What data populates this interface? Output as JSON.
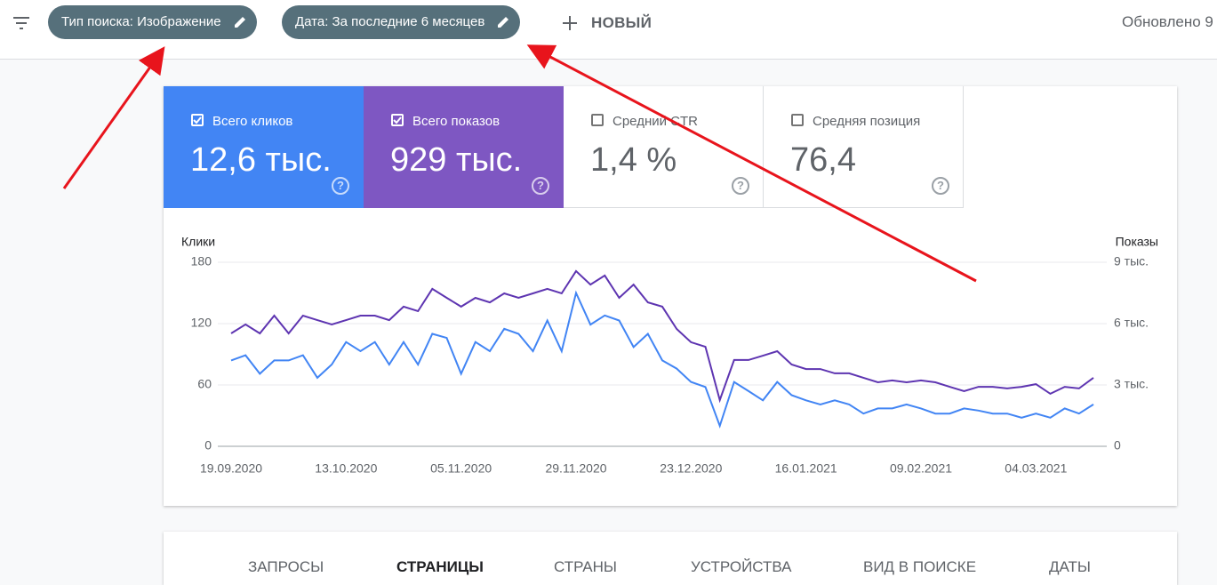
{
  "header": {
    "filters": [
      "Тип поиска: Изображение",
      "Дата: За последние 6 месяцев"
    ],
    "new_button": "НОВЫЙ",
    "updated": "Обновлено 9"
  },
  "metrics": [
    {
      "label": "Всего кликов",
      "value": "12,6 тыс.",
      "checked": true,
      "color": "#4285f4"
    },
    {
      "label": "Всего показов",
      "value": "929 тыс.",
      "checked": true,
      "color": "#7e57c2"
    },
    {
      "label": "Средний CTR",
      "value": "1,4 %",
      "checked": false,
      "color": "#ffffff"
    },
    {
      "label": "Средняя позиция",
      "value": "76,4",
      "checked": false,
      "color": "#ffffff"
    }
  ],
  "chart_data": {
    "type": "line",
    "y_label": "Клики",
    "y2_label": "Показы",
    "x": [
      "19.09.2020",
      null,
      null,
      null,
      null,
      null,
      null,
      null,
      "13.10.2020",
      null,
      null,
      null,
      null,
      null,
      null,
      null,
      "05.11.2020",
      null,
      null,
      null,
      null,
      null,
      null,
      null,
      "29.11.2020",
      null,
      null,
      null,
      null,
      null,
      null,
      null,
      "23.12.2020",
      null,
      null,
      null,
      null,
      null,
      null,
      null,
      "16.01.2021",
      null,
      null,
      null,
      null,
      null,
      null,
      null,
      "09.02.2021",
      null,
      null,
      null,
      null,
      null,
      null,
      null,
      "04.03.2021",
      null,
      null,
      null,
      null
    ],
    "series": [
      {
        "name": "Клики",
        "color": "#4285f4",
        "values": [
          84,
          89,
          71,
          84,
          84,
          89,
          67,
          80,
          102,
          93,
          102,
          80,
          102,
          80,
          110,
          106,
          71,
          102,
          93,
          115,
          110,
          93,
          123,
          93,
          150,
          119,
          128,
          123,
          97,
          110,
          84,
          76,
          63,
          58,
          20,
          63,
          54,
          45,
          63,
          50,
          45,
          41,
          45,
          41,
          32,
          37,
          37,
          41,
          37,
          32,
          32,
          37,
          35,
          32,
          32,
          28,
          32,
          28,
          37,
          32,
          41
        ]
      },
      {
        "name": "Показы",
        "color": "#5e35b1",
        "axis": "y2",
        "values": [
          5520,
          5960,
          5520,
          6390,
          5520,
          6390,
          6170,
          5960,
          6170,
          6390,
          6390,
          6170,
          6830,
          6610,
          7700,
          7260,
          6830,
          7260,
          7040,
          7480,
          7260,
          7480,
          7700,
          7480,
          8570,
          7910,
          8350,
          7260,
          7910,
          7040,
          6830,
          5740,
          5090,
          4870,
          2260,
          4220,
          4220,
          4430,
          4650,
          4000,
          3780,
          3780,
          3570,
          3570,
          3350,
          3130,
          3220,
          3130,
          3220,
          3130,
          2910,
          2700,
          2910,
          2910,
          2830,
          2910,
          3040,
          2570,
          2910,
          2830,
          3350
        ]
      }
    ],
    "ylim": [
      0,
      180
    ],
    "yticks": [
      0,
      60,
      120,
      180
    ],
    "y2lim": [
      0,
      9000
    ],
    "y2ticks": [
      0,
      {
        "value": 3000,
        "label": "3 тыс."
      },
      {
        "value": 6000,
        "label": "6 тыс."
      },
      {
        "value": 9000,
        "label": "9 тыс."
      }
    ],
    "grid": true
  },
  "tabs": [
    "ЗАПРОСЫ",
    "СТРАНИЦЫ",
    "СТРАНЫ",
    "УСТРОЙСТВА",
    "ВИД В ПОИСКЕ",
    "ДАТЫ"
  ],
  "active_tab": 1
}
